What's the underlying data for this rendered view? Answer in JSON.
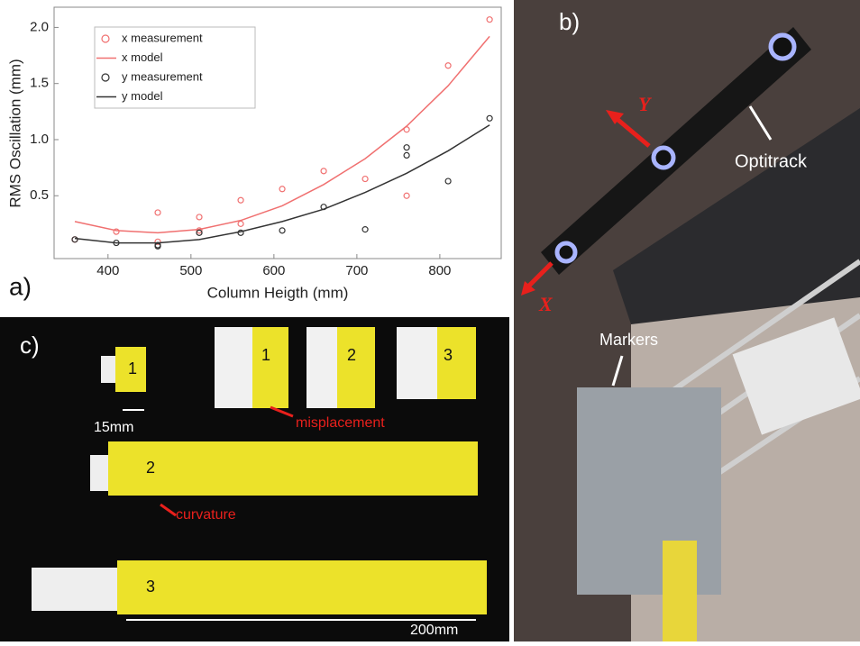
{
  "chart_data": {
    "type": "scatter",
    "x_label": "Column Heigth (mm)",
    "y_label": "RMS Oscillation (mm)",
    "xlim": [
      335,
      874
    ],
    "xticks": [
      400,
      500,
      600,
      700,
      800
    ],
    "ylim": [
      -0.06,
      2.18
    ],
    "yticks": [
      0.5,
      {
        "value": 1,
        "label": "1.0"
      },
      1.5,
      {
        "value": 2,
        "label": "2.0"
      }
    ],
    "grid": false,
    "legend": "upper left",
    "series": [
      {
        "name": "x measurement",
        "type": "scatter",
        "color": "#f07070",
        "x": [
          360,
          410,
          460,
          460,
          510,
          510,
          560,
          560,
          610,
          660,
          710,
          760,
          760,
          810,
          860
        ],
        "values": [
          0.11,
          0.18,
          0.35,
          0.09,
          0.31,
          0.19,
          0.46,
          0.25,
          0.56,
          0.72,
          0.65,
          1.09,
          0.5,
          1.66,
          2.07
        ]
      },
      {
        "name": "x model",
        "type": "line",
        "color": "#f07070",
        "x": [
          360,
          410,
          460,
          510,
          560,
          610,
          660,
          710,
          760,
          810,
          860
        ],
        "values": [
          0.27,
          0.19,
          0.17,
          0.2,
          0.28,
          0.41,
          0.6,
          0.83,
          1.12,
          1.48,
          1.92
        ]
      },
      {
        "name": "y measurement",
        "type": "scatter",
        "color": "#333333",
        "x": [
          360,
          410,
          460,
          460,
          510,
          560,
          610,
          660,
          710,
          760,
          760,
          810,
          860
        ],
        "values": [
          0.11,
          0.08,
          0.06,
          0.05,
          0.17,
          0.17,
          0.19,
          0.4,
          0.2,
          0.93,
          0.86,
          0.63,
          1.19
        ]
      },
      {
        "name": "y model",
        "type": "line",
        "color": "#333333",
        "x": [
          360,
          410,
          460,
          510,
          560,
          610,
          660,
          710,
          760,
          810,
          860
        ],
        "values": [
          0.12,
          0.08,
          0.08,
          0.11,
          0.18,
          0.27,
          0.38,
          0.53,
          0.7,
          0.9,
          1.13
        ]
      }
    ]
  },
  "panels": {
    "a": {
      "label": "a)"
    },
    "b": {
      "label": "b)",
      "optitrack": "Optitrack",
      "markers": "Markers",
      "axis_y": "Y",
      "axis_x": "X"
    },
    "c": {
      "label": "c)",
      "blocks": [
        "1",
        "2",
        "3"
      ],
      "insets": [
        "1",
        "2",
        "3"
      ],
      "small_size": "15mm",
      "misplacement": "misplacement",
      "curvature": "curvature",
      "large_size": "200mm"
    }
  }
}
